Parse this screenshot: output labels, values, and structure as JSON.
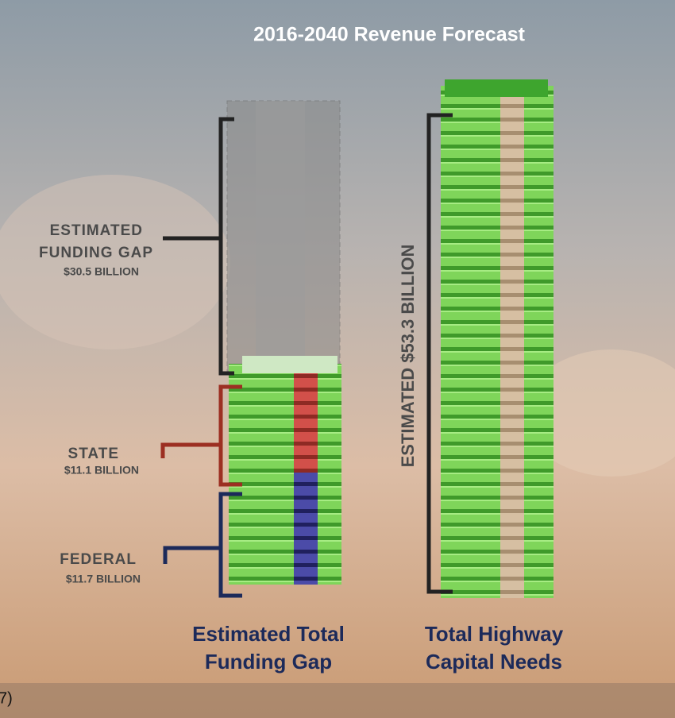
{
  "title": "2016-2040 Revenue Forecast",
  "left_labels": [
    {
      "lines": [
        "ESTIMATED",
        "FUNDING GAP"
      ],
      "amount": "$30.5 BILLION"
    },
    {
      "lines": [
        "STATE"
      ],
      "amount": "$11.1 BILLION"
    },
    {
      "lines": [
        "FEDERAL"
      ],
      "amount": "$11.7 BILLION"
    }
  ],
  "total_label": "ESTIMATED $53.3 BILLION",
  "captions": [
    {
      "lines": [
        "Estimated Total",
        "Funding Gap"
      ]
    },
    {
      "lines": [
        "Total Highway",
        "Capital Needs"
      ]
    }
  ],
  "edge_text": "7)"
}
